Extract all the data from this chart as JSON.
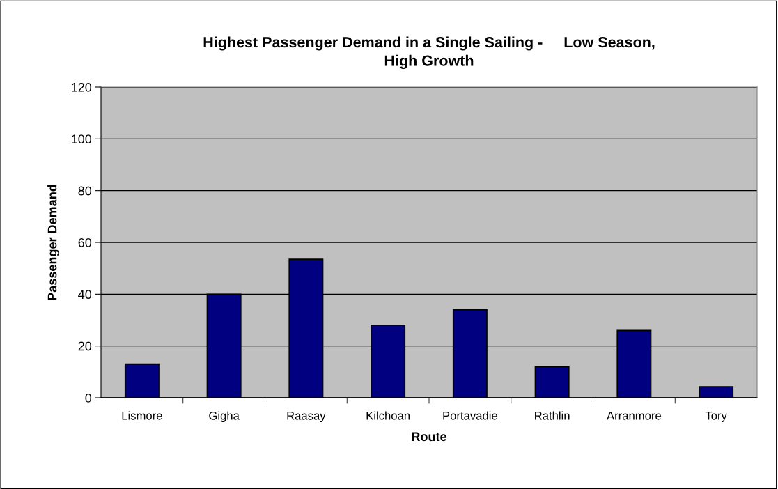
{
  "chart_data": {
    "type": "bar",
    "title": "Highest Passenger Demand in a Single Sailing -     Low Season,\nHigh Growth",
    "xlabel": "Route",
    "ylabel": "Passenger Demand",
    "categories": [
      "Lismore",
      "Gigha",
      "Raasay",
      "Kilchoan",
      "Portavadie",
      "Rathlin",
      "Arranmore",
      "Tory"
    ],
    "values": [
      13,
      40,
      53.5,
      28,
      34,
      12,
      26,
      4.3
    ],
    "color": "#000080",
    "ylim": [
      0,
      120
    ],
    "yticks": [
      0,
      20,
      40,
      60,
      80,
      100,
      120
    ],
    "grid": "y",
    "legend": false
  }
}
